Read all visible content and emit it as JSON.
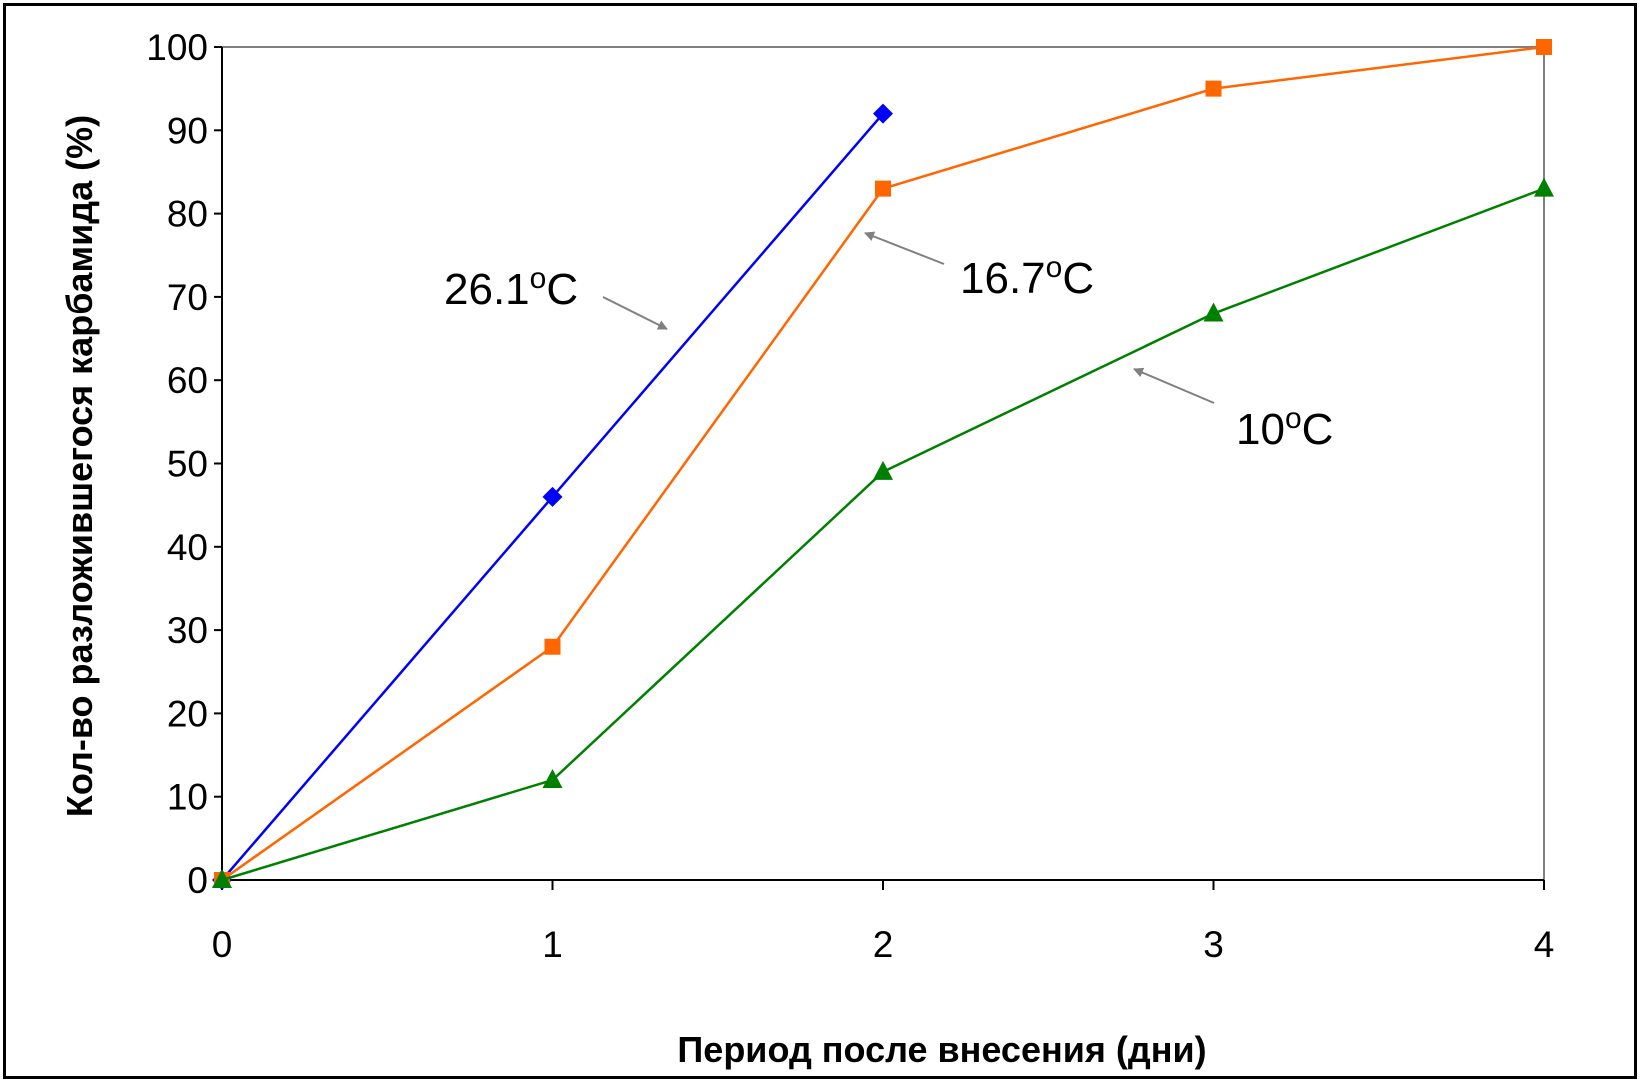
{
  "chart_data": {
    "type": "line",
    "title": "",
    "xlabel": "Период после внесения (дни)",
    "ylabel": "Кол-во разложившегося карбамида (%)",
    "xlim": [
      0,
      4
    ],
    "ylim": [
      0,
      100
    ],
    "x_ticks": [
      "0",
      "1",
      "2",
      "3",
      "4"
    ],
    "y_ticks": [
      "0",
      "10",
      "20",
      "30",
      "40",
      "50",
      "60",
      "70",
      "80",
      "90",
      "100"
    ],
    "grid": false,
    "legend": "none",
    "series": [
      {
        "color": "#0000ff",
        "marker": "diamond",
        "points": [
          [
            0,
            0
          ],
          [
            1,
            46
          ],
          [
            2,
            92
          ]
        ]
      },
      {
        "color": "#ff6600",
        "marker": "square",
        "points": [
          [
            0,
            0
          ],
          [
            1,
            28
          ],
          [
            2,
            83
          ],
          [
            3,
            95
          ],
          [
            4,
            100
          ]
        ]
      },
      {
        "color": "#008000",
        "marker": "triangle",
        "points": [
          [
            0,
            0
          ],
          [
            1,
            12
          ],
          [
            2,
            49
          ],
          [
            3,
            68
          ],
          [
            4,
            83
          ]
        ]
      }
    ],
    "annotations": [
      {
        "text": "26.1",
        "sup": "o",
        "unit": "C",
        "series": 0
      },
      {
        "text": "16.7",
        "sup": "o",
        "unit": "C",
        "series": 1
      },
      {
        "text": "10",
        "sup": "o",
        "unit": "C",
        "series": 2
      }
    ]
  }
}
